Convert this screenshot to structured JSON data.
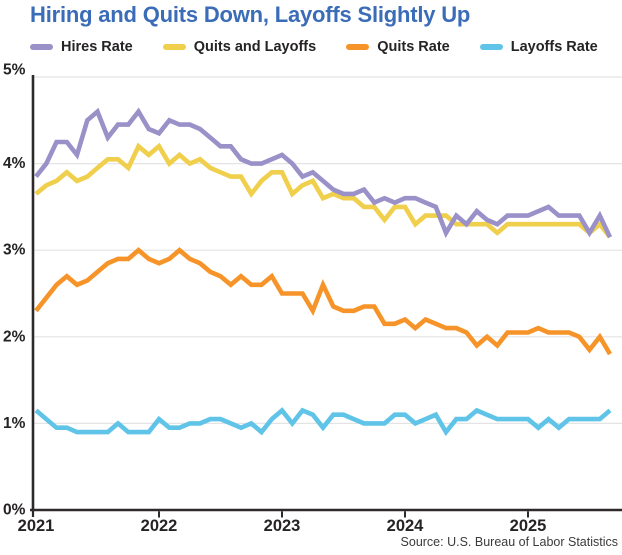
{
  "title": "Hiring and Quits Down, Layoffs Slightly Up",
  "title_color": "#3a6cb8",
  "source": "Source: U.S. Bureau of Labor Statistics",
  "legend": {
    "items": [
      {
        "label": "Hires Rate",
        "color": "#9a91c8"
      },
      {
        "label": "Quits and Layoffs",
        "color": "#efcf4c"
      },
      {
        "label": "Quits Rate",
        "color": "#f79429"
      },
      {
        "label": "Layoffs Rate",
        "color": "#60c4e8"
      }
    ]
  },
  "chart_data": {
    "type": "line",
    "x_frequency": "monthly",
    "x_ticks": [
      "2021",
      "2022",
      "2023",
      "2024",
      "2025"
    ],
    "y_ticks": [
      "5%",
      "4%",
      "3%",
      "2%",
      "1%",
      "0%"
    ],
    "ylim": [
      0,
      5
    ],
    "grid": "horizontal",
    "legend_position": "top",
    "series": [
      {
        "name": "Quits and Layoffs",
        "color": "#efcf4c",
        "values": [
          3.65,
          3.75,
          3.8,
          3.9,
          3.8,
          3.85,
          3.95,
          4.05,
          4.05,
          3.95,
          4.2,
          4.1,
          4.2,
          4.0,
          4.1,
          4.0,
          4.05,
          3.95,
          3.9,
          3.85,
          3.85,
          3.65,
          3.8,
          3.9,
          3.9,
          3.65,
          3.75,
          3.8,
          3.6,
          3.65,
          3.6,
          3.6,
          3.5,
          3.5,
          3.35,
          3.5,
          3.5,
          3.3,
          3.4,
          3.4,
          3.4,
          3.3,
          3.3,
          3.3,
          3.3,
          3.2,
          3.3,
          3.3,
          3.3,
          3.3,
          3.3,
          3.3,
          3.3,
          3.3,
          3.2,
          3.3,
          3.15
        ]
      },
      {
        "name": "Hires Rate",
        "color": "#9a91c8",
        "values": [
          3.85,
          4.0,
          4.25,
          4.25,
          4.1,
          4.5,
          4.6,
          4.3,
          4.45,
          4.45,
          4.6,
          4.4,
          4.35,
          4.5,
          4.45,
          4.45,
          4.4,
          4.3,
          4.2,
          4.2,
          4.05,
          4.0,
          4.0,
          4.05,
          4.1,
          4.0,
          3.85,
          3.9,
          3.8,
          3.7,
          3.65,
          3.65,
          3.7,
          3.55,
          3.6,
          3.55,
          3.6,
          3.6,
          3.55,
          3.5,
          3.2,
          3.4,
          3.3,
          3.45,
          3.35,
          3.3,
          3.4,
          3.4,
          3.4,
          3.45,
          3.5,
          3.4,
          3.4,
          3.4,
          3.2,
          3.4,
          3.15
        ]
      },
      {
        "name": "Quits Rate",
        "color": "#f79429",
        "values": [
          2.3,
          2.45,
          2.6,
          2.7,
          2.6,
          2.65,
          2.75,
          2.85,
          2.9,
          2.9,
          3.0,
          2.9,
          2.85,
          2.9,
          3.0,
          2.9,
          2.85,
          2.75,
          2.7,
          2.6,
          2.7,
          2.6,
          2.6,
          2.7,
          2.5,
          2.5,
          2.5,
          2.3,
          2.6,
          2.35,
          2.3,
          2.3,
          2.35,
          2.35,
          2.15,
          2.15,
          2.2,
          2.1,
          2.2,
          2.15,
          2.1,
          2.1,
          2.05,
          1.9,
          2.0,
          1.9,
          2.05,
          2.05,
          2.05,
          2.1,
          2.05,
          2.05,
          2.05,
          2.0,
          1.85,
          2.0,
          1.8
        ]
      },
      {
        "name": "Layoffs Rate",
        "color": "#60c4e8",
        "values": [
          1.15,
          1.05,
          0.95,
          0.95,
          0.9,
          0.9,
          0.9,
          0.9,
          1.0,
          0.9,
          0.9,
          0.9,
          1.05,
          0.95,
          0.95,
          1.0,
          1.0,
          1.05,
          1.05,
          1.0,
          0.95,
          1.0,
          0.9,
          1.05,
          1.15,
          1.0,
          1.15,
          1.1,
          0.95,
          1.1,
          1.1,
          1.05,
          1.0,
          1.0,
          1.0,
          1.1,
          1.1,
          1.0,
          1.05,
          1.1,
          0.9,
          1.05,
          1.05,
          1.15,
          1.1,
          1.05,
          1.05,
          1.05,
          1.05,
          0.95,
          1.05,
          0.95,
          1.05,
          1.05,
          1.05,
          1.05,
          1.15
        ]
      }
    ]
  }
}
